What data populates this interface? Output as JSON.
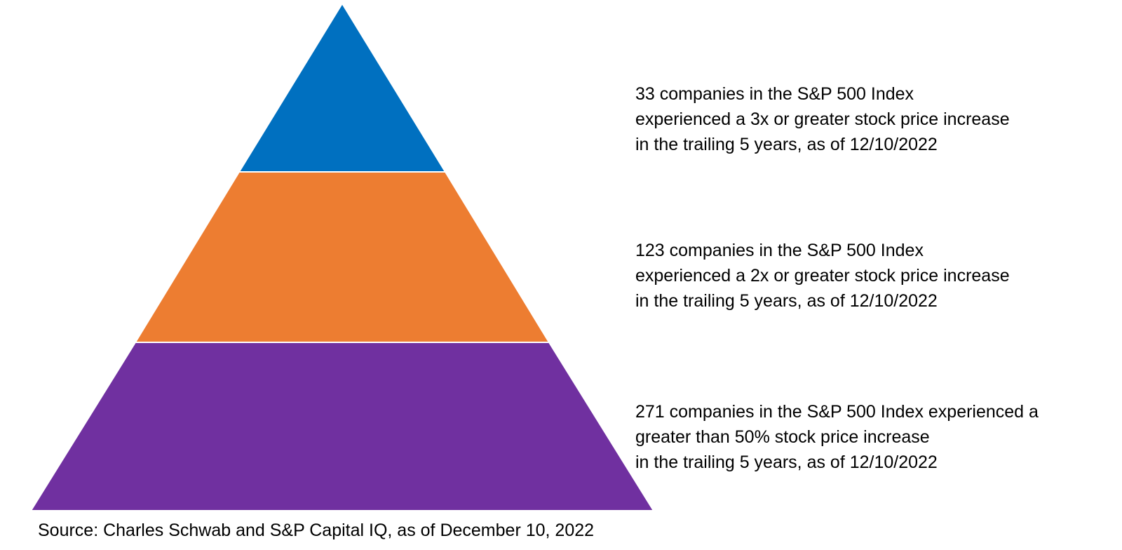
{
  "pyramid": {
    "tiers": [
      {
        "id": "top",
        "color": "#0070C0",
        "lines": [
          "33 companies in the S&P 500 Index",
          "experienced a 3x or greater stock price increase",
          "in the trailing 5 years, as of 12/10/2022"
        ]
      },
      {
        "id": "middle",
        "color": "#ED7D31",
        "lines": [
          "123 companies in the S&P 500 Index",
          "experienced a 2x or greater stock price increase",
          "in the trailing 5 years, as of 12/10/2022"
        ]
      },
      {
        "id": "bottom",
        "color": "#7030A0",
        "lines": [
          "271 companies in the S&P 500 Index experienced a",
          "greater than 50% stock price increase",
          "in the trailing 5 years, as of 12/10/2022"
        ]
      }
    ]
  },
  "source": "Source: Charles Schwab and S&P Capital IQ, as of December 10, 2022"
}
